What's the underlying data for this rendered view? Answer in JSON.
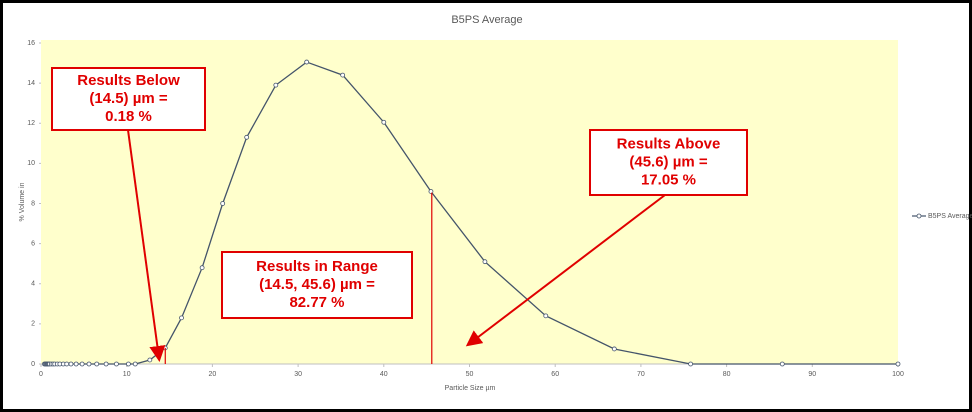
{
  "chart_data": {
    "type": "line",
    "title": "B5PS Average",
    "xlabel": "Particle Size µm",
    "ylabel": "% Volume in",
    "x": [
      0.4,
      0.5,
      0.6,
      0.7,
      0.8,
      0.9,
      1.0,
      1.2,
      1.4,
      1.6,
      1.9,
      2.2,
      2.6,
      3.0,
      3.5,
      4.1,
      4.8,
      5.6,
      6.5,
      7.6,
      8.8,
      10.2,
      11.0,
      12.7,
      14.5,
      16.4,
      18.8,
      21.2,
      24.0,
      27.4,
      31.0,
      35.2,
      40.0,
      45.5,
      51.8,
      58.9,
      66.9,
      75.8,
      86.5,
      100
    ],
    "series": [
      {
        "name": "B5PS Average",
        "color": "#44546a",
        "values": [
          0,
          0,
          0,
          0,
          0,
          0,
          0,
          0,
          0,
          0,
          0,
          0,
          0,
          0,
          0,
          0,
          0,
          0,
          0,
          0,
          0,
          0,
          0,
          0.2,
          0.8,
          2.3,
          4.8,
          8.0,
          11.3,
          13.9,
          15.05,
          14.4,
          12.05,
          8.6,
          5.1,
          2.4,
          0.75,
          0,
          0,
          0
        ]
      }
    ],
    "xlim": [
      0,
      100
    ],
    "xticks": [
      0,
      10,
      20,
      30,
      40,
      50,
      60,
      70,
      80,
      90,
      100
    ],
    "ylim": [
      0,
      16
    ],
    "yticks": [
      0,
      2,
      4,
      6,
      8,
      10,
      12,
      14,
      16
    ],
    "reference_lines": [
      14.5,
      45.6
    ],
    "annotations": [
      {
        "lines": [
          "Results Below",
          "(14.5) µm =",
          "0.18 %"
        ]
      },
      {
        "lines": [
          "Results in Range",
          "(14.5, 45.6) µm =",
          "82.77 %"
        ]
      },
      {
        "lines": [
          "Results Above",
          "(45.6) µm =",
          "17.05 %"
        ]
      }
    ],
    "legend": "right"
  }
}
